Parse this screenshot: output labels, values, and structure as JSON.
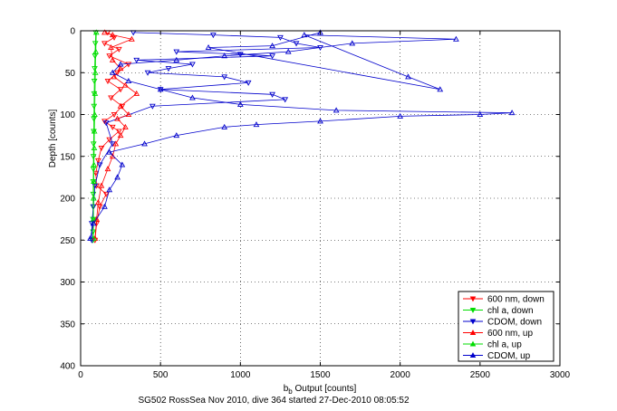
{
  "chart_data": {
    "type": "line",
    "footer": "SG502 RossSea Nov 2010, dive 364 started 27-Dec-2010 08:05:52",
    "xlabel_main": "b",
    "xlabel_sub": "b",
    "xlabel_rest": " Output [counts]",
    "ylabel": "Depth [counts]",
    "xlim": [
      0,
      3000
    ],
    "ylim": [
      0,
      400
    ],
    "y_reversed": true,
    "grid": true,
    "x_ticks": [
      "0",
      "500",
      "1000",
      "1500",
      "2000",
      "2500",
      "3000"
    ],
    "y_ticks": [
      "0",
      "50",
      "100",
      "150",
      "200",
      "250",
      "300",
      "350",
      "400"
    ],
    "legend_position": "bottom-right",
    "series": [
      {
        "name": "600 nm, down",
        "color": "#ff0000",
        "marker": "triangle-down",
        "x": [
          170,
          210,
          150,
          240,
          180,
          300,
          230,
          170,
          250,
          190,
          260,
          210,
          150,
          200,
          240,
          180,
          130,
          110,
          95,
          100,
          160,
          120,
          100,
          90
        ],
        "y": [
          2,
          8,
          15,
          22,
          30,
          40,
          50,
          60,
          70,
          80,
          90,
          100,
          108,
          115,
          120,
          130,
          140,
          155,
          170,
          185,
          195,
          210,
          230,
          250
        ]
      },
      {
        "name": "chl a, down",
        "color": "#00dd00",
        "marker": "triangle-down",
        "x": [
          95,
          92,
          90,
          88,
          86,
          85,
          84,
          83,
          82,
          81,
          80,
          80,
          79,
          79,
          78,
          78,
          78,
          78
        ],
        "y": [
          2,
          15,
          30,
          45,
          60,
          75,
          90,
          105,
          120,
          135,
          150,
          165,
          180,
          195,
          210,
          225,
          240,
          250
        ]
      },
      {
        "name": "CDOM, down",
        "color": "#0000cc",
        "marker": "triangle-down",
        "x": [
          330,
          830,
          1250,
          1350,
          1500,
          600,
          1000,
          1200,
          350,
          700,
          550,
          420,
          900,
          1050,
          500,
          1200,
          1280,
          450,
          160,
          200,
          120,
          90,
          80,
          70,
          70
        ],
        "y": [
          2,
          5,
          8,
          15,
          20,
          25,
          28,
          30,
          35,
          40,
          45,
          50,
          55,
          62,
          70,
          76,
          82,
          90,
          110,
          135,
          160,
          185,
          210,
          230,
          250
        ]
      },
      {
        "name": "600 nm, up",
        "color": "#ff0000",
        "marker": "triangle-up",
        "x": [
          90,
          100,
          110,
          130,
          170,
          200,
          220,
          250,
          280,
          230,
          300,
          250,
          350,
          280,
          210,
          250,
          200,
          190,
          320,
          200,
          150
        ],
        "y": [
          248,
          225,
          205,
          185,
          165,
          150,
          135,
          125,
          115,
          105,
          100,
          90,
          75,
          65,
          55,
          45,
          35,
          20,
          10,
          5,
          2
        ]
      },
      {
        "name": "chl a, up",
        "color": "#00dd00",
        "marker": "triangle-up",
        "x": [
          80,
          80,
          81,
          82,
          83,
          85,
          86,
          88,
          90,
          92,
          95,
          98
        ],
        "y": [
          248,
          225,
          200,
          180,
          160,
          140,
          120,
          100,
          75,
          50,
          25,
          2
        ]
      },
      {
        "name": "CDOM, up",
        "color": "#0000cc",
        "marker": "triangle-up",
        "x": [
          60,
          80,
          150,
          180,
          230,
          260,
          180,
          400,
          600,
          900,
          1100,
          1500,
          2000,
          2500,
          2700,
          1600,
          1000,
          700,
          500,
          300,
          200,
          250,
          600,
          900,
          1300,
          1700,
          2350,
          1400,
          2050,
          2250,
          800,
          1200,
          1500
        ],
        "y": [
          248,
          230,
          210,
          190,
          175,
          160,
          145,
          135,
          125,
          115,
          112,
          108,
          102,
          100,
          98,
          95,
          88,
          80,
          70,
          60,
          50,
          40,
          35,
          30,
          25,
          15,
          10,
          5,
          55,
          70,
          20,
          18,
          2
        ]
      }
    ]
  }
}
